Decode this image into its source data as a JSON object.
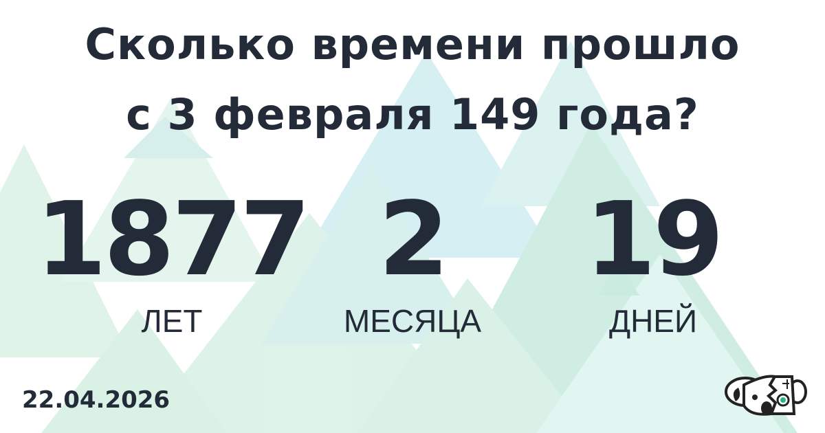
{
  "title": {
    "line1": "Сколько времени прошло",
    "line2": "с 3 февраля 149 года?"
  },
  "result": [
    {
      "value": "1877",
      "unit": "ЛЕТ"
    },
    {
      "value": "2",
      "unit": "МЕСЯЦА"
    },
    {
      "value": "19",
      "unit": "ДНЕЙ"
    }
  ],
  "date": "22.04.2026",
  "logo": {
    "icon": "koala-robot-logo"
  },
  "colors": {
    "text": "#222b37",
    "triangle_green": "#bfe8d2",
    "triangle_teal": "#bde7ea",
    "logo_accent": "#2bb58a"
  }
}
